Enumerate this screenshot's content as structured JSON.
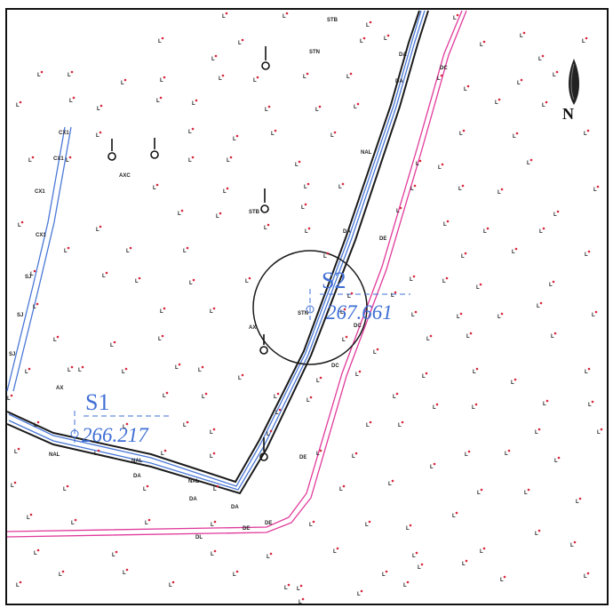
{
  "stations": [
    {
      "label": "S1",
      "elevation": "266.217"
    },
    {
      "label": "S2",
      "elevation": "267.661"
    }
  ],
  "features": {
    "pole_marker": "L",
    "stream_codes": [
      "CX1",
      "CX1",
      "CX1",
      "CX1",
      "SJ",
      "SJ",
      "SJ",
      "AX",
      "AX"
    ],
    "road_codes": [
      "NAL",
      "NAL",
      "NAL",
      "DA",
      "DA",
      "DA",
      "DL",
      "DE",
      "DE",
      "DE",
      "DC",
      "DC",
      "DE",
      "NAL",
      "DA",
      "DA",
      "DA",
      "DC"
    ],
    "struct_codes": [
      "STB",
      "STB",
      "STN",
      "STN",
      "AXC"
    ]
  },
  "north_arrow": {
    "icon": "north-arrow-icon",
    "letter": "N"
  },
  "colors": {
    "road_outline": "#1a1a1a",
    "stream": "#4a78d6",
    "boundary": "#e0399b",
    "point": "#d8263b",
    "station_text": "#3f6fd4"
  }
}
